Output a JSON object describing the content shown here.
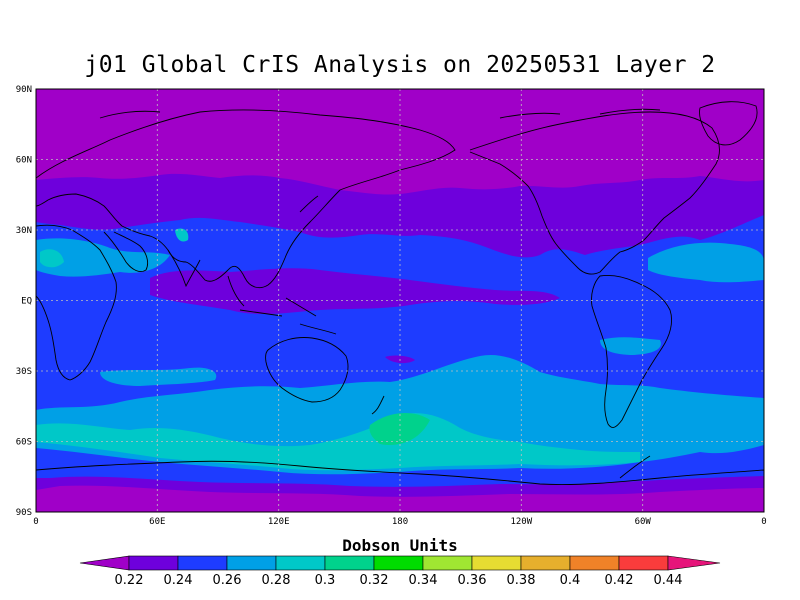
{
  "title": "j01 Global CrIS Analysis on 20250531 Layer 2",
  "units_label": "Dobson Units",
  "lat_labels": [
    "90N",
    "60N",
    "30N",
    "EQ",
    "30S",
    "60S",
    "90S"
  ],
  "lon_labels": [
    "0",
    "60E",
    "120E",
    "180",
    "120W",
    "60W",
    "0"
  ],
  "colorbar": {
    "labels": [
      "0.22",
      "0.24",
      "0.26",
      "0.28",
      "0.3",
      "0.32",
      "0.34",
      "0.36",
      "0.38",
      "0.4",
      "0.42",
      "0.44"
    ],
    "colors": [
      "#a000c8",
      "#6e00dc",
      "#1e3cff",
      "#00a0e6",
      "#00c8c8",
      "#00d28c",
      "#00dc00",
      "#a0e632",
      "#e6dc32",
      "#e6af2d",
      "#f08228",
      "#fa3c3c",
      "#e6147a"
    ]
  },
  "map_colors": {
    "polar": "#a000c8",
    "band_0_22_0_24": "#6e00dc",
    "band_0_24_0_26": "#1e3cff",
    "band_0_26_0_28": "#00a0e6",
    "band_0_28_0_30": "#00c8c8",
    "band_0_30_0_32": "#00d28c"
  }
}
